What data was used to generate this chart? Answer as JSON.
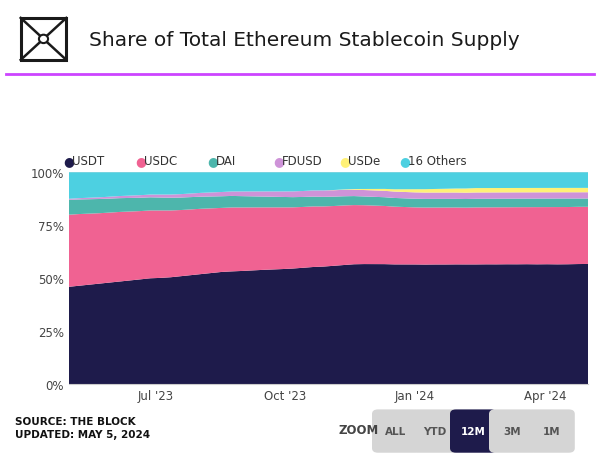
{
  "title": "Share of Total Ethereum Stablecoin Supply",
  "source_text": "SOURCE: THE BLOCK\nUPDATED: MAY 5, 2024",
  "zoom_label": "ZOOM",
  "zoom_buttons": [
    "ALL",
    "YTD",
    "12M",
    "3M",
    "1M"
  ],
  "zoom_active": "12M",
  "legend_items": [
    "USDT",
    "USDC",
    "DAI",
    "FDUSD",
    "USDe",
    "16 Others"
  ],
  "colors": {
    "USDT": "#1e1b4b",
    "USDC": "#f06292",
    "DAI": "#4db6ac",
    "FDUSD": "#ce93d8",
    "USDe": "#fff176",
    "16 Others": "#4dd0e1"
  },
  "background": "#ffffff",
  "header_line_color": "#cc44ff",
  "x_ticks": [
    "Jul '23",
    "Oct '23",
    "Jan '24",
    "Apr '24"
  ],
  "y_ticks": [
    "0%",
    "25%",
    "50%",
    "75%",
    "100%"
  ],
  "y_tick_values": [
    0,
    25,
    50,
    75,
    100
  ],
  "usdt_vals": [
    46,
    46.5,
    47,
    47.5,
    48,
    48.5,
    49,
    49.5,
    50,
    50.2,
    50.5,
    51,
    51.5,
    52,
    52.5,
    53,
    53,
    53.2,
    53.5,
    53.8,
    54,
    54.2,
    54.5,
    54.8,
    55,
    55.2,
    55.5,
    55.7,
    56,
    56.2,
    56.3,
    56.4,
    56.5,
    56.6,
    56.7,
    56.7,
    56.8,
    56.8,
    56.9,
    57,
    57,
    57.1,
    57.2,
    57.3,
    57.4,
    57.5,
    57.5,
    57.6,
    57.6,
    57.7,
    57.8,
    57.9
  ],
  "usdc_vals": [
    34,
    33.8,
    33.5,
    33.2,
    33,
    32.8,
    32.5,
    32.2,
    32,
    31.8,
    31.5,
    31.2,
    31,
    30.8,
    30.5,
    30.2,
    30,
    29.8,
    29.6,
    29.4,
    29.2,
    29,
    28.8,
    28.6,
    28.4,
    28.2,
    28,
    27.8,
    27.6,
    27.5,
    27.4,
    27.3,
    27.2,
    27.1,
    27,
    27,
    27,
    27,
    27,
    27,
    27.1,
    27.1,
    27.2,
    27.2,
    27.3,
    27.3,
    27.4,
    27.4,
    27.5,
    27.5,
    27.5,
    27.5
  ],
  "dai_vals": [
    7,
    6.9,
    6.8,
    6.7,
    6.6,
    6.5,
    6.4,
    6.3,
    6.2,
    6.1,
    6,
    5.9,
    5.8,
    5.7,
    5.6,
    5.5,
    5.4,
    5.3,
    5.2,
    5.1,
    5,
    4.9,
    4.8,
    4.7,
    4.6,
    4.5,
    4.4,
    4.3,
    4.2,
    4.1,
    4.1,
    4.1,
    4.1,
    4.1,
    4.1,
    4.1,
    4.1,
    4.1,
    4.1,
    4.1,
    4.1,
    4.1,
    4.1,
    4.1,
    4.1,
    4.1,
    4.1,
    4.1,
    4.1,
    4.1,
    4.0,
    4.0
  ],
  "fdusd_vals": [
    0.5,
    0.6,
    0.7,
    0.8,
    0.9,
    1.0,
    1.1,
    1.2,
    1.3,
    1.4,
    1.5,
    1.6,
    1.7,
    1.8,
    1.9,
    2.0,
    2.1,
    2.2,
    2.3,
    2.4,
    2.5,
    2.6,
    2.7,
    2.8,
    2.9,
    3.0,
    3.0,
    3.0,
    3.0,
    3.0,
    3.0,
    3.0,
    3.0,
    3.0,
    3.0,
    3.0,
    3.0,
    3.0,
    3.0,
    3.0,
    3.0,
    3.0,
    3.0,
    3.0,
    3.0,
    3.0,
    3.0,
    3.0,
    3.0,
    3.0,
    3.0,
    3.0
  ],
  "usde_vals": [
    0,
    0,
    0,
    0,
    0,
    0,
    0,
    0,
    0,
    0,
    0,
    0,
    0,
    0,
    0,
    0,
    0,
    0,
    0,
    0,
    0,
    0,
    0,
    0,
    0,
    0,
    0.1,
    0.2,
    0.3,
    0.5,
    0.7,
    0.9,
    1.1,
    1.3,
    1.5,
    1.6,
    1.7,
    1.8,
    1.9,
    2.0,
    2.1,
    2.1,
    2.1,
    2.1,
    2.1,
    2.1,
    2.1,
    2.1,
    2.1,
    2.1,
    2.1,
    2.1
  ],
  "others_vals": [
    12.5,
    12.2,
    12.0,
    11.8,
    11.5,
    11.2,
    11.0,
    10.8,
    10.5,
    10.5,
    10.5,
    10.3,
    10.0,
    9.7,
    9.5,
    9.3,
    9.0,
    9.0,
    9.0,
    9.0,
    9.0,
    9.0,
    9.0,
    8.8,
    8.5,
    8.5,
    8.3,
    8.0,
    7.8,
    7.8,
    7.8,
    7.8,
    8.0,
    8.0,
    8.0,
    8.0,
    7.9,
    7.8,
    7.7,
    7.7,
    7.5,
    7.5,
    7.5,
    7.5,
    7.5,
    7.5,
    7.5,
    7.5,
    7.5,
    7.5,
    7.5,
    7.5
  ]
}
